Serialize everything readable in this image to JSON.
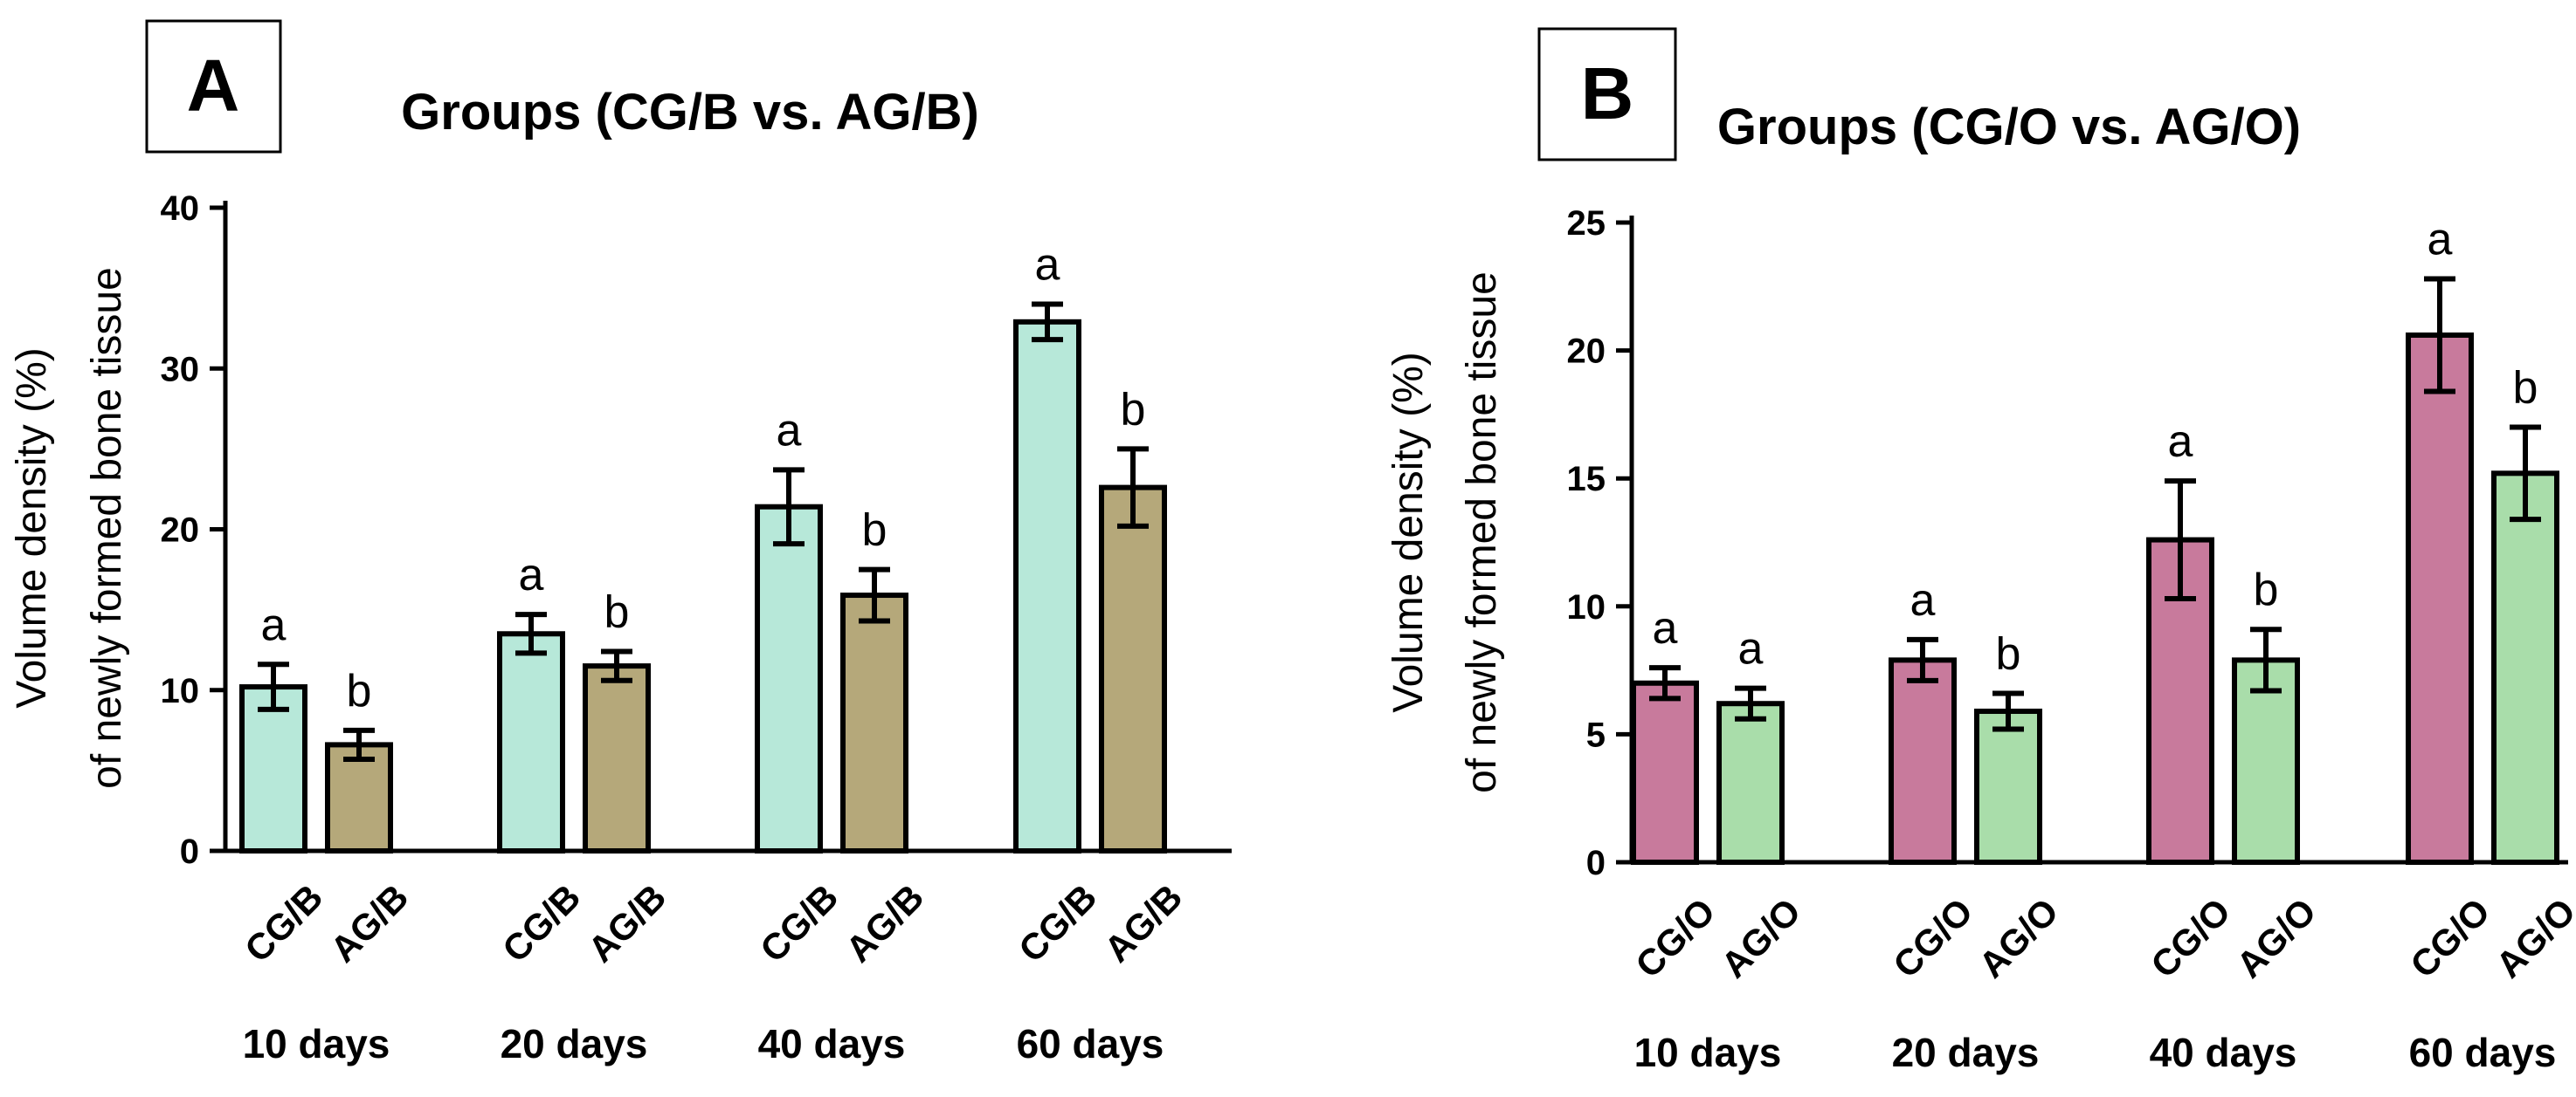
{
  "chart_data": [
    {
      "type": "bar",
      "panel_label": "A",
      "title": "Groups (CG/B vs. AG/B)",
      "ylabel_lines": [
        "Volume density (%)",
        "of newly formed bone tissue"
      ],
      "ylim": [
        0,
        40
      ],
      "yticks": [
        0,
        10,
        20,
        30,
        40
      ],
      "groups": [
        "10 days",
        "20 days",
        "40 days",
        "60 days"
      ],
      "series": [
        {
          "name": "CG/B",
          "color": "#b7e8d9",
          "values": [
            10.2,
            13.5,
            21.4,
            32.9
          ],
          "errors": [
            1.4,
            1.2,
            2.3,
            1.1
          ],
          "labels": [
            "a",
            "a",
            "a",
            "a"
          ]
        },
        {
          "name": "AG/B",
          "color": "#b5a87a",
          "values": [
            6.6,
            11.5,
            15.9,
            22.6
          ],
          "errors": [
            0.9,
            0.9,
            1.6,
            2.4
          ],
          "labels": [
            "b",
            "b",
            "b",
            "b"
          ]
        }
      ]
    },
    {
      "type": "bar",
      "panel_label": "B",
      "title": "Groups (CG/O vs. AG/O)",
      "ylabel_lines": [
        "Volume density (%)",
        "of newly formed bone tissue"
      ],
      "ylim": [
        0,
        25
      ],
      "yticks": [
        0,
        5,
        10,
        15,
        20,
        25
      ],
      "groups": [
        "10 days",
        "20 days",
        "40 days",
        "60 days"
      ],
      "series": [
        {
          "name": "CG/O",
          "color": "#c87a9c",
          "values": [
            7.0,
            7.9,
            12.6,
            20.6
          ],
          "errors": [
            0.6,
            0.8,
            2.3,
            2.2
          ],
          "labels": [
            "a",
            "a",
            "a",
            "a"
          ]
        },
        {
          "name": "AG/O",
          "color": "#a9ddaa",
          "values": [
            6.2,
            5.9,
            7.9,
            15.2
          ],
          "errors": [
            0.6,
            0.7,
            1.2,
            1.8
          ],
          "labels": [
            "a",
            "b",
            "b",
            "b"
          ]
        }
      ]
    }
  ]
}
